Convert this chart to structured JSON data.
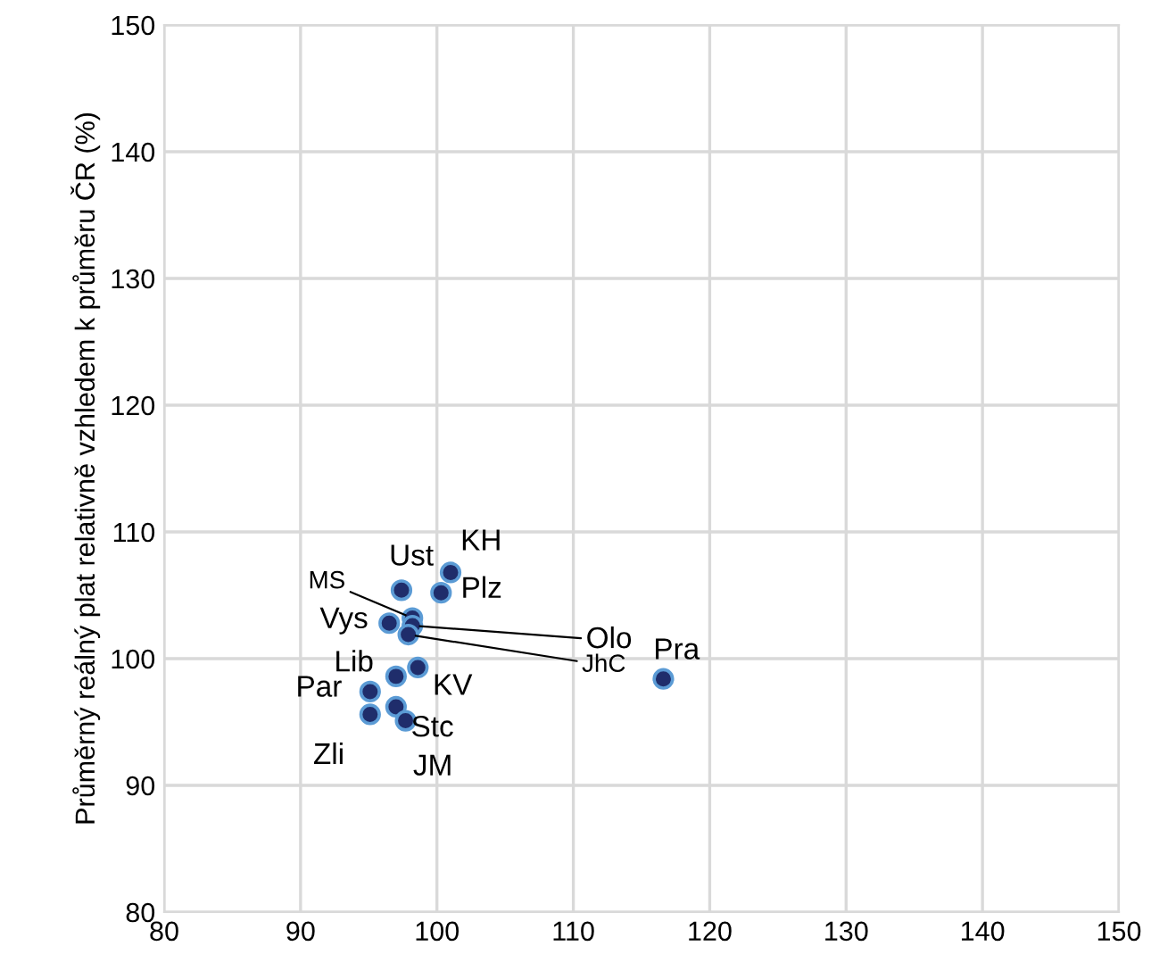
{
  "chart_data": {
    "type": "scatter",
    "ylabel": "Průměrný reálný plat relativně vzhledem k průměru ČR (%)",
    "series": [
      {
        "color": "#1f2d6b",
        "x": [
          97.4,
          101.0,
          100.3,
          98.2,
          96.5,
          98.2,
          97.9,
          97.0,
          98.6,
          95.1,
          95.1,
          97.0,
          97.7,
          116.6
        ],
        "values": [
          105.4,
          106.8,
          105.2,
          103.2,
          102.8,
          102.6,
          101.9,
          98.6,
          99.3,
          97.4,
          95.6,
          96.2,
          95.1,
          98.4
        ]
      }
    ],
    "annotations": [
      {
        "text": "Ust",
        "x": 97.4,
        "y": 105.4
      },
      {
        "text": "KH",
        "x": 101.0,
        "y": 106.8
      },
      {
        "text": "Plz",
        "x": 100.3,
        "y": 105.2
      },
      {
        "text": "MS",
        "x": 98.2,
        "y": 103.2
      },
      {
        "text": "Vys",
        "x": 96.5,
        "y": 102.8
      },
      {
        "text": "Olo",
        "x": 98.2,
        "y": 102.6
      },
      {
        "text": "JhC",
        "x": 97.9,
        "y": 101.9
      },
      {
        "text": "Lib",
        "x": 97.0,
        "y": 98.6
      },
      {
        "text": "KV",
        "x": 98.6,
        "y": 99.3
      },
      {
        "text": "Par",
        "x": 95.1,
        "y": 97.4
      },
      {
        "text": "Zli",
        "x": 95.1,
        "y": 95.6
      },
      {
        "text": "Stc",
        "x": 97.0,
        "y": 96.2
      },
      {
        "text": "JM",
        "x": 97.7,
        "y": 95.1
      },
      {
        "text": "Pra",
        "x": 116.6,
        "y": 98.4
      }
    ],
    "xlim": [
      80,
      150
    ],
    "xticks": [
      80,
      90,
      100,
      110,
      120,
      130,
      140,
      150
    ],
    "ylim": [
      80,
      150
    ],
    "yticks": [
      80,
      90,
      100,
      110,
      120,
      130,
      140,
      150
    ],
    "grid": true,
    "marker": "circle"
  }
}
